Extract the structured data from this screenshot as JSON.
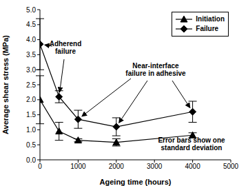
{
  "chart_data": {
    "type": "line",
    "x_label": "Ageing time (hours)",
    "y_label": "Average shear stress (MPa)",
    "x": [
      0,
      500,
      1000,
      2000,
      4000
    ],
    "series": [
      {
        "name": "Initiation",
        "color": "#000000",
        "marker": "triangle",
        "values": [
          2.0,
          0.95,
          0.65,
          0.58,
          0.82
        ],
        "errors": [
          0.8,
          0.3,
          0.05,
          0.12,
          0.08
        ]
      },
      {
        "name": "Failure",
        "color": "#000000",
        "marker": "diamond",
        "values": [
          3.85,
          2.1,
          1.35,
          1.1,
          1.6
        ],
        "errors": [
          0.85,
          0.2,
          0.3,
          0.3,
          0.35
        ]
      }
    ],
    "xlim": [
      0,
      5000
    ],
    "xticks": [
      0,
      1000,
      2000,
      3000,
      4000,
      5000
    ],
    "ylim": [
      0,
      5
    ],
    "yticks": [
      {
        "value": 0,
        "label": "0.0"
      },
      {
        "value": 0.5,
        "label": "0.5"
      },
      {
        "value": 1,
        "label": "1.0"
      },
      {
        "value": 1.5,
        "label": "1.5"
      },
      {
        "value": 2,
        "label": "2.0"
      },
      {
        "value": 2.5,
        "label": "2.5"
      },
      {
        "value": 3,
        "label": "3.0"
      },
      {
        "value": 3.5,
        "label": "3.5"
      },
      {
        "value": 4,
        "label": "4.0"
      },
      {
        "value": 4.5,
        "label": "4.5"
      },
      {
        "value": 5,
        "label": "5.0"
      }
    ],
    "legend": "top-right",
    "grid": false,
    "annotations": [
      {
        "text": "Adherend failure",
        "points": [
          [
            0,
            3.85
          ],
          [
            500,
            2.1
          ]
        ]
      },
      {
        "text": "Near-interface failure in adhesive",
        "points": [
          [
            1000,
            1.35
          ],
          [
            2000,
            1.1
          ],
          [
            4000,
            1.6
          ]
        ]
      },
      {
        "text": "Error bars show one standard deviation",
        "points": []
      }
    ]
  }
}
